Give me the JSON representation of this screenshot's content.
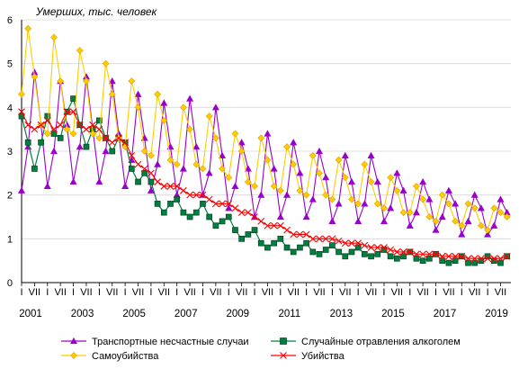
{
  "chart_data": {
    "type": "line",
    "y_title": "Умерших, тыс. человек",
    "ylim": [
      0,
      6
    ],
    "y_ticks": [
      "0",
      "1",
      "2",
      "3",
      "4",
      "5",
      "6"
    ],
    "x_range": [
      2001,
      2019.9
    ],
    "month_ticks": [
      "I",
      "VII"
    ],
    "year_labels": [
      "2001",
      "2003",
      "2005",
      "2007",
      "2009",
      "2011",
      "2013",
      "2015",
      "2017",
      "2019"
    ],
    "grid": "horizontal",
    "legend_position": "bottom",
    "series": [
      {
        "name": "Транспортные несчастные случаи",
        "color": "#9900cc",
        "marker": "triangle",
        "x": [
          2001.0,
          2001.25,
          2001.5,
          2001.75,
          2002.0,
          2002.25,
          2002.5,
          2002.75,
          2003.0,
          2003.25,
          2003.5,
          2003.75,
          2004.0,
          2004.25,
          2004.5,
          2004.75,
          2005.0,
          2005.25,
          2005.5,
          2005.75,
          2006.0,
          2006.25,
          2006.5,
          2006.75,
          2007.0,
          2007.25,
          2007.5,
          2007.75,
          2008.0,
          2008.25,
          2008.5,
          2008.75,
          2009.0,
          2009.25,
          2009.5,
          2009.75,
          2010.0,
          2010.25,
          2010.5,
          2010.75,
          2011.0,
          2011.25,
          2011.5,
          2011.75,
          2012.0,
          2012.25,
          2012.5,
          2012.75,
          2013.0,
          2013.25,
          2013.5,
          2013.75,
          2014.0,
          2014.25,
          2014.5,
          2014.75,
          2015.0,
          2015.25,
          2015.5,
          2015.75,
          2016.0,
          2016.25,
          2016.5,
          2016.75,
          2017.0,
          2017.25,
          2017.5,
          2017.75,
          2018.0,
          2018.25,
          2018.5,
          2018.75,
          2019.0,
          2019.25,
          2019.5,
          2019.75
        ],
        "values": [
          2.1,
          3.1,
          4.8,
          3.6,
          2.2,
          3.0,
          4.6,
          3.6,
          2.3,
          3.1,
          4.7,
          3.5,
          2.3,
          3.0,
          4.6,
          3.4,
          2.2,
          2.8,
          4.3,
          3.3,
          2.1,
          2.7,
          4.1,
          3.1,
          2.0,
          2.6,
          4.2,
          3.1,
          2.0,
          2.5,
          4.0,
          2.9,
          1.7,
          2.2,
          3.2,
          2.6,
          1.5,
          2.0,
          3.4,
          2.6,
          1.5,
          2.0,
          3.2,
          2.5,
          1.5,
          1.9,
          3.0,
          2.4,
          1.4,
          1.8,
          2.9,
          2.3,
          1.4,
          1.8,
          2.9,
          2.3,
          1.4,
          1.7,
          2.5,
          2.1,
          1.3,
          1.6,
          2.3,
          1.9,
          1.2,
          1.5,
          2.1,
          1.8,
          1.1,
          1.4,
          2.0,
          1.7,
          1.1,
          1.3,
          1.9,
          1.6
        ]
      },
      {
        "name": "Случайные отравления алкоголем",
        "color": "#008040",
        "marker": "square",
        "x": [
          2001.0,
          2001.25,
          2001.5,
          2001.75,
          2002.0,
          2002.25,
          2002.5,
          2002.75,
          2003.0,
          2003.25,
          2003.5,
          2003.75,
          2004.0,
          2004.25,
          2004.5,
          2004.75,
          2005.0,
          2005.25,
          2005.5,
          2005.75,
          2006.0,
          2006.25,
          2006.5,
          2006.75,
          2007.0,
          2007.25,
          2007.5,
          2007.75,
          2008.0,
          2008.25,
          2008.5,
          2008.75,
          2009.0,
          2009.25,
          2009.5,
          2009.75,
          2010.0,
          2010.25,
          2010.5,
          2010.75,
          2011.0,
          2011.25,
          2011.5,
          2011.75,
          2012.0,
          2012.25,
          2012.5,
          2012.75,
          2013.0,
          2013.25,
          2013.5,
          2013.75,
          2014.0,
          2014.25,
          2014.5,
          2014.75,
          2015.0,
          2015.25,
          2015.5,
          2015.75,
          2016.0,
          2016.25,
          2016.5,
          2016.75,
          2017.0,
          2017.25,
          2017.5,
          2017.75,
          2018.0,
          2018.25,
          2018.5,
          2018.75,
          2019.0,
          2019.25,
          2019.5,
          2019.75
        ],
        "values": [
          3.8,
          3.2,
          2.6,
          3.2,
          3.8,
          3.4,
          3.3,
          3.9,
          4.2,
          3.6,
          3.1,
          3.5,
          3.7,
          3.3,
          3.0,
          3.3,
          3.2,
          2.6,
          2.3,
          2.5,
          2.3,
          1.8,
          1.6,
          1.8,
          1.9,
          1.6,
          1.5,
          1.6,
          1.8,
          1.5,
          1.3,
          1.4,
          1.5,
          1.2,
          1.0,
          1.1,
          1.2,
          0.9,
          0.8,
          0.9,
          1.0,
          0.8,
          0.7,
          0.8,
          0.9,
          0.7,
          0.65,
          0.75,
          0.85,
          0.7,
          0.6,
          0.7,
          0.8,
          0.65,
          0.6,
          0.65,
          0.75,
          0.6,
          0.55,
          0.6,
          0.7,
          0.55,
          0.5,
          0.55,
          0.65,
          0.5,
          0.45,
          0.5,
          0.6,
          0.45,
          0.45,
          0.5,
          0.6,
          0.5,
          0.45,
          0.6
        ]
      },
      {
        "name": "Самоубийства",
        "color": "#ffcc00",
        "marker": "diamond",
        "x": [
          2001.0,
          2001.25,
          2001.5,
          2001.75,
          2002.0,
          2002.25,
          2002.5,
          2002.75,
          2003.0,
          2003.25,
          2003.5,
          2003.75,
          2004.0,
          2004.25,
          2004.5,
          2004.75,
          2005.0,
          2005.25,
          2005.5,
          2005.75,
          2006.0,
          2006.25,
          2006.5,
          2006.75,
          2007.0,
          2007.25,
          2007.5,
          2007.75,
          2008.0,
          2008.25,
          2008.5,
          2008.75,
          2009.0,
          2009.25,
          2009.5,
          2009.75,
          2010.0,
          2010.25,
          2010.5,
          2010.75,
          2011.0,
          2011.25,
          2011.5,
          2011.75,
          2012.0,
          2012.25,
          2012.5,
          2012.75,
          2013.0,
          2013.25,
          2013.5,
          2013.75,
          2014.0,
          2014.25,
          2014.5,
          2014.75,
          2015.0,
          2015.25,
          2015.5,
          2015.75,
          2016.0,
          2016.25,
          2016.5,
          2016.75,
          2017.0,
          2017.25,
          2017.5,
          2017.75,
          2018.0,
          2018.25,
          2018.5,
          2018.75,
          2019.0,
          2019.25,
          2019.5,
          2019.75
        ],
        "values": [
          4.3,
          5.8,
          4.7,
          3.6,
          3.4,
          5.6,
          4.6,
          3.5,
          3.4,
          5.3,
          4.6,
          3.4,
          3.3,
          5.0,
          4.3,
          3.3,
          3.1,
          4.6,
          4.0,
          3.0,
          2.9,
          4.3,
          3.7,
          2.8,
          2.7,
          4.0,
          3.5,
          2.7,
          2.6,
          3.8,
          3.3,
          2.6,
          2.4,
          3.4,
          3.0,
          2.3,
          2.2,
          3.3,
          2.8,
          2.2,
          2.1,
          3.1,
          2.7,
          2.1,
          2.0,
          2.9,
          2.5,
          2.0,
          1.9,
          2.8,
          2.4,
          1.9,
          1.8,
          2.7,
          2.3,
          1.8,
          1.7,
          2.4,
          2.1,
          1.6,
          1.6,
          2.2,
          1.9,
          1.5,
          1.4,
          2.0,
          1.8,
          1.4,
          1.3,
          1.8,
          1.7,
          1.3,
          1.2,
          1.7,
          1.6,
          1.5
        ]
      },
      {
        "name": "Убийства",
        "color": "#ff0000",
        "marker": "cross",
        "x": [
          2001.0,
          2001.25,
          2001.5,
          2001.75,
          2002.0,
          2002.25,
          2002.5,
          2002.75,
          2003.0,
          2003.25,
          2003.5,
          2003.75,
          2004.0,
          2004.25,
          2004.5,
          2004.75,
          2005.0,
          2005.25,
          2005.5,
          2005.75,
          2006.0,
          2006.25,
          2006.5,
          2006.75,
          2007.0,
          2007.25,
          2007.5,
          2007.75,
          2008.0,
          2008.25,
          2008.5,
          2008.75,
          2009.0,
          2009.25,
          2009.5,
          2009.75,
          2010.0,
          2010.25,
          2010.5,
          2010.75,
          2011.0,
          2011.25,
          2011.5,
          2011.75,
          2012.0,
          2012.25,
          2012.5,
          2012.75,
          2013.0,
          2013.25,
          2013.5,
          2013.75,
          2014.0,
          2014.25,
          2014.5,
          2014.75,
          2015.0,
          2015.25,
          2015.5,
          2015.75,
          2016.0,
          2016.25,
          2016.5,
          2016.75,
          2017.0,
          2017.25,
          2017.5,
          2017.75,
          2018.0,
          2018.25,
          2018.5,
          2018.75,
          2019.0,
          2019.25,
          2019.5,
          2019.75
        ],
        "values": [
          3.9,
          3.6,
          3.5,
          3.6,
          3.7,
          3.5,
          3.6,
          3.9,
          3.9,
          3.6,
          3.5,
          3.6,
          3.5,
          3.3,
          3.2,
          3.3,
          3.2,
          2.9,
          2.7,
          2.6,
          2.5,
          2.3,
          2.2,
          2.2,
          2.2,
          2.1,
          2.0,
          2.0,
          2.0,
          1.9,
          1.8,
          1.8,
          1.8,
          1.7,
          1.6,
          1.6,
          1.5,
          1.4,
          1.3,
          1.3,
          1.3,
          1.2,
          1.1,
          1.1,
          1.1,
          1.0,
          1.0,
          1.0,
          1.0,
          0.95,
          0.9,
          0.9,
          0.9,
          0.85,
          0.8,
          0.8,
          0.8,
          0.75,
          0.7,
          0.7,
          0.7,
          0.65,
          0.65,
          0.65,
          0.65,
          0.6,
          0.6,
          0.6,
          0.6,
          0.55,
          0.55,
          0.55,
          0.55,
          0.55,
          0.55,
          0.6
        ]
      }
    ]
  }
}
